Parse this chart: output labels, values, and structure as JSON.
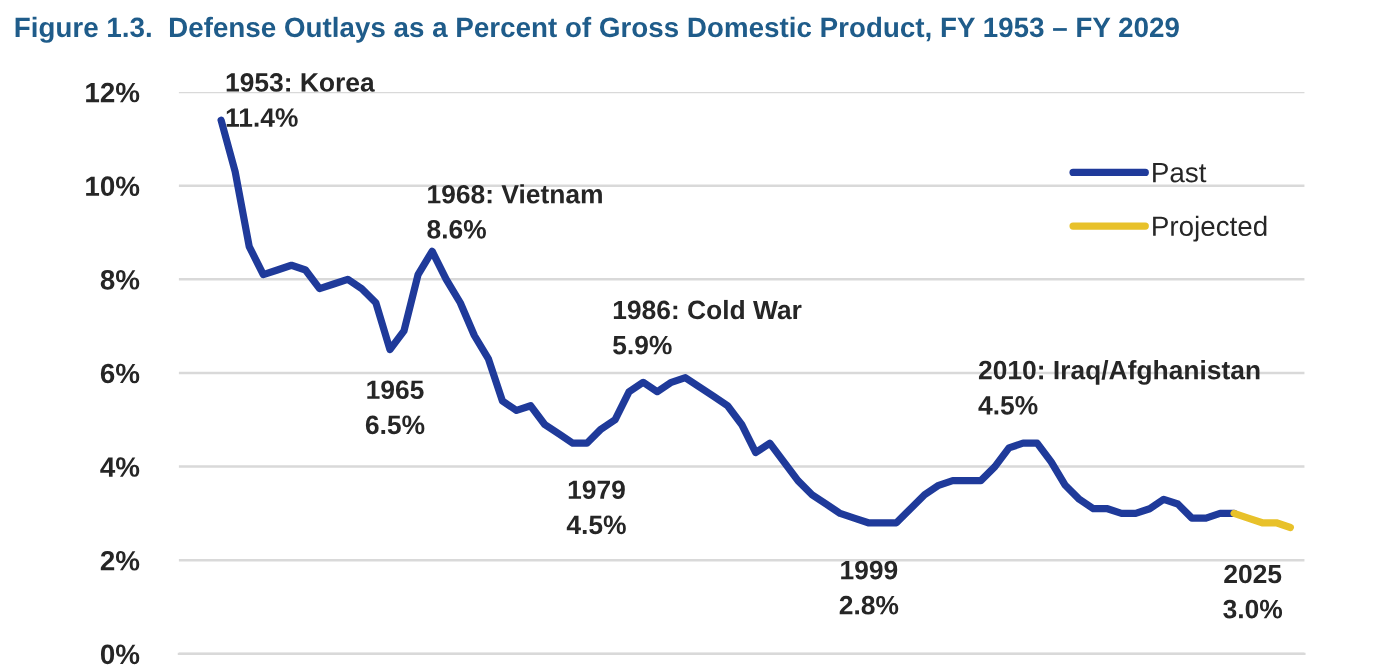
{
  "chart_data": {
    "type": "line",
    "title": "Figure 1.3.  Defense Outlays as a Percent of Gross Domestic Product, FY 1953 – FY 2029",
    "categories": [
      null,
      null,
      null,
      null,
      null,
      null,
      null,
      null,
      null,
      null,
      null,
      null,
      null,
      null,
      null,
      null,
      null,
      null,
      null,
      null,
      null,
      null,
      null,
      null,
      null,
      null,
      null,
      null,
      null,
      null,
      null,
      null,
      null,
      null,
      null,
      null,
      null,
      null,
      null,
      null,
      null,
      null,
      null,
      null,
      null,
      null,
      null,
      null,
      null,
      null,
      null,
      null,
      null,
      null,
      null,
      null,
      null,
      null,
      null,
      null,
      null,
      null,
      null,
      null,
      null,
      null,
      null,
      null,
      null,
      null,
      null,
      null,
      null,
      null,
      null,
      null,
      null
    ],
    "series": [
      {
        "name": "Past",
        "color": "#1f3a9a",
        "values": [
          11.4,
          10.3,
          8.7,
          8.1,
          8.2,
          8.3,
          8.2,
          7.8,
          7.9,
          8.0,
          7.8,
          7.5,
          6.5,
          6.9,
          8.1,
          8.6,
          8.0,
          7.5,
          6.8,
          6.3,
          5.4,
          5.2,
          5.3,
          4.9,
          4.7,
          4.5,
          4.5,
          4.8,
          5.0,
          5.6,
          5.8,
          5.6,
          5.8,
          5.9,
          5.7,
          5.5,
          5.3,
          4.9,
          4.3,
          4.5,
          4.1,
          3.7,
          3.4,
          3.2,
          3.0,
          2.9,
          2.8,
          2.8,
          2.8,
          3.1,
          3.4,
          3.6,
          3.7,
          3.7,
          3.7,
          4.0,
          4.4,
          4.5,
          4.5,
          4.1,
          3.6,
          3.3,
          3.1,
          3.1,
          3.0,
          3.0,
          3.1,
          3.3,
          3.2,
          2.9,
          2.9,
          3.0,
          3.0,
          null,
          null,
          null,
          null
        ]
      },
      {
        "name": "Projected",
        "color": "#e8c12a",
        "values": [
          null,
          null,
          null,
          null,
          null,
          null,
          null,
          null,
          null,
          null,
          null,
          null,
          null,
          null,
          null,
          null,
          null,
          null,
          null,
          null,
          null,
          null,
          null,
          null,
          null,
          null,
          null,
          null,
          null,
          null,
          null,
          null,
          null,
          null,
          null,
          null,
          null,
          null,
          null,
          null,
          null,
          null,
          null,
          null,
          null,
          null,
          null,
          null,
          null,
          null,
          null,
          null,
          null,
          null,
          null,
          null,
          null,
          null,
          null,
          null,
          null,
          null,
          null,
          null,
          null,
          null,
          null,
          null,
          null,
          null,
          null,
          null,
          3.0,
          2.9,
          2.8,
          2.8,
          2.7
        ]
      }
    ],
    "ylim": [
      0,
      12
    ],
    "yticks": [
      {
        "value": 0,
        "label": "0%"
      },
      {
        "value": 2,
        "label": "2%"
      },
      {
        "value": 4,
        "label": "4%"
      },
      {
        "value": 6,
        "label": "6%"
      },
      {
        "value": 8,
        "label": "8%"
      },
      {
        "value": 10,
        "label": "10%"
      },
      {
        "value": 12,
        "label": "12%"
      }
    ],
    "grid": "y",
    "legend": "top right",
    "line_style": "solid",
    "annotations": [
      "1953: Korea\n11.4%",
      "1968: Vietnam\n8.6%",
      "1986: Cold War\n5.9%",
      "2010: Iraq/Afghanistan\n4.5%",
      "1965\n6.5%",
      "1979\n4.5%",
      "1999\n2.8%",
      "2025\n3.0%"
    ]
  }
}
